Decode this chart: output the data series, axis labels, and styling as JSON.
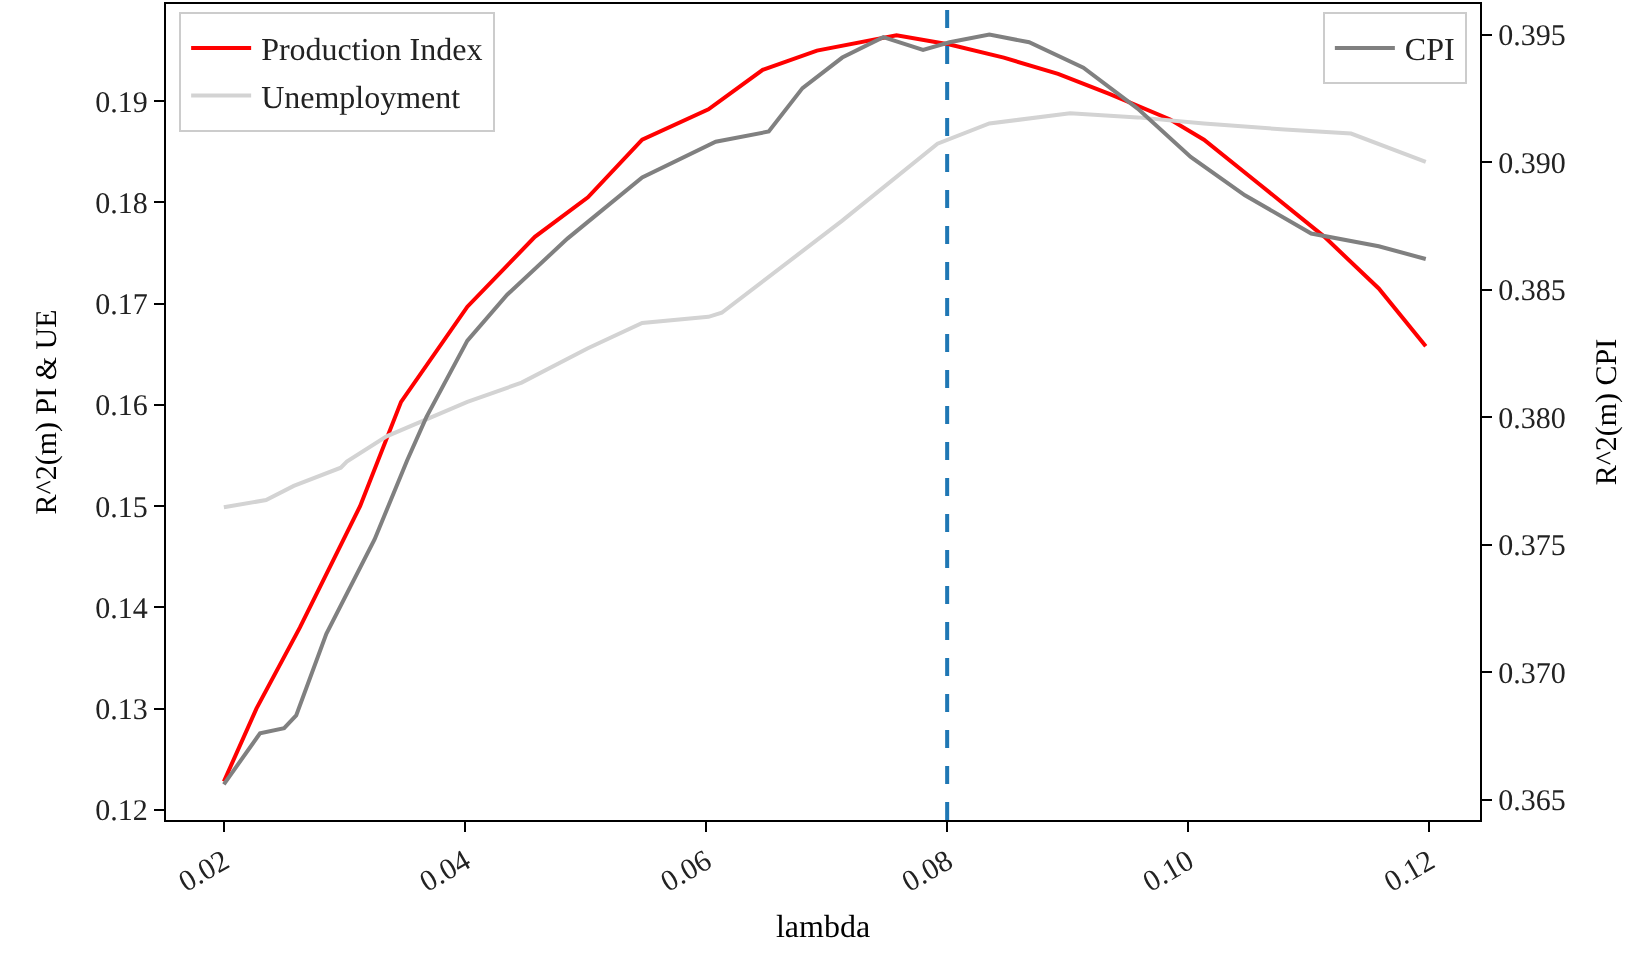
{
  "chart_data": {
    "type": "line",
    "xlabel": "lambda",
    "ylabel": "R^2(m) PI & UE",
    "y2label": "R^2(m) CPI",
    "xlim": [
      0.0152,
      0.1242
    ],
    "xticks": [
      {
        "value": 0.02,
        "label": "0.02"
      },
      {
        "value": 0.04,
        "label": "0.04"
      },
      {
        "value": 0.06,
        "label": "0.06"
      },
      {
        "value": 0.08,
        "label": "0.08"
      },
      {
        "value": 0.1,
        "label": "0.10"
      },
      {
        "value": 0.12,
        "label": "0.12"
      }
    ],
    "ylim": [
      0.119,
      0.1996
    ],
    "yticks": [
      0.12,
      0.13,
      0.14,
      0.15,
      0.16,
      0.17,
      0.18,
      0.19
    ],
    "y2lim": [
      0.3642,
      0.3962
    ],
    "y2ticks": [
      0.365,
      {
        "value": 0.37,
        "label": "0.370"
      },
      0.375,
      {
        "value": 0.38,
        "label": "0.380"
      },
      0.385,
      {
        "value": 0.39,
        "label": "0.390"
      },
      0.395
    ],
    "legend": "top left",
    "marker": "none",
    "line_style": "solid",
    "ref_lines": [
      {
        "axis": "x",
        "value": 0.08,
        "color": "#1f77b4",
        "line_style": "dashed"
      }
    ],
    "series": [
      {
        "name": "Production Index",
        "color": "#ff0000",
        "x": [
          0.02,
          0.0227,
          0.0263,
          0.0313,
          0.0347,
          0.0402,
          0.0458,
          0.0502,
          0.0547,
          0.0602,
          0.0647,
          0.0692,
          0.0758,
          0.0802,
          0.0847,
          0.0892,
          0.0935,
          0.0985,
          0.1013,
          0.1058,
          0.1113,
          0.1158,
          0.1197
        ],
        "values": [
          0.1228,
          0.13,
          0.138,
          0.15,
          0.1603,
          0.1697,
          0.1766,
          0.1805,
          0.1862,
          0.1892,
          0.1931,
          0.195,
          0.1965,
          0.1956,
          0.1943,
          0.1927,
          0.1907,
          0.1882,
          0.1862,
          0.1819,
          0.1766,
          0.1715,
          0.1658
        ]
      },
      {
        "name": "Unemployment",
        "color": "#d3d3d3",
        "x": [
          0.02,
          0.0235,
          0.0258,
          0.0297,
          0.0302,
          0.0335,
          0.0402,
          0.0447,
          0.0502,
          0.0547,
          0.0602,
          0.0613,
          0.0713,
          0.0792,
          0.0835,
          0.0902,
          0.0958,
          0.1013,
          0.108,
          0.1135,
          0.1197
        ],
        "values": [
          0.1499,
          0.1506,
          0.152,
          0.1538,
          0.1544,
          0.1569,
          0.1603,
          0.1622,
          0.1656,
          0.1681,
          0.1687,
          0.1691,
          0.1782,
          0.1858,
          0.1878,
          0.1888,
          0.1884,
          0.1878,
          0.1872,
          0.1868,
          0.184
        ]
      },
      {
        "name": "CPI",
        "color": "#808080",
        "axis": "y2",
        "x": [
          0.02,
          0.023,
          0.025,
          0.026,
          0.0285,
          0.0325,
          0.0352,
          0.0368,
          0.0402,
          0.0435,
          0.0485,
          0.0547,
          0.0608,
          0.0652,
          0.068,
          0.0713,
          0.0747,
          0.078,
          0.0802,
          0.0835,
          0.0868,
          0.0913,
          0.0958,
          0.1002,
          0.1047,
          0.1102,
          0.1158,
          0.1197
        ],
        "values": [
          0.3656,
          0.3676,
          0.3678,
          0.3683,
          0.3715,
          0.3752,
          0.3783,
          0.38,
          0.383,
          0.3848,
          0.387,
          0.3894,
          0.3908,
          0.3912,
          0.3929,
          0.3941,
          0.3949,
          0.3944,
          0.3947,
          0.395,
          0.3947,
          0.3937,
          0.3921,
          0.3902,
          0.3887,
          0.3872,
          0.3867,
          0.3862
        ]
      }
    ]
  }
}
